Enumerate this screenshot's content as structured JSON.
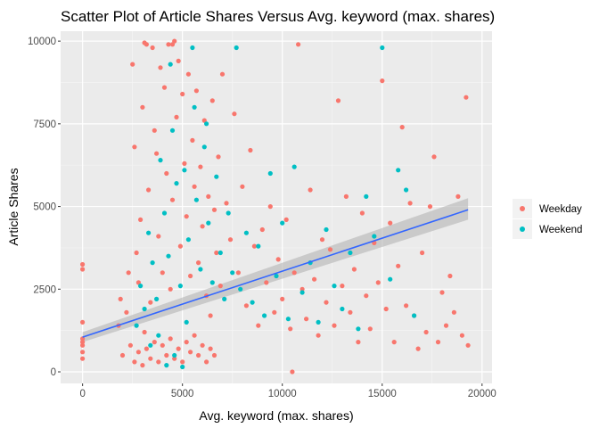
{
  "chart_data": {
    "type": "scatter",
    "title": "Scatter Plot of Article Shares Versus Avg. keyword (max. shares)",
    "xlabel": "Avg. keyword (max. shares)",
    "ylabel": "Article Shares",
    "xlim": [
      -1100,
      20500
    ],
    "ylim": [
      -350,
      10300
    ],
    "x_ticks": [
      0,
      5000,
      10000,
      15000,
      20000
    ],
    "x_tick_labels": [
      "0",
      "5000",
      "10000",
      "15000",
      "20000"
    ],
    "y_ticks": [
      0,
      2500,
      5000,
      7500,
      10000
    ],
    "y_tick_labels": [
      "0",
      "2500",
      "5000",
      "7500",
      "10000"
    ],
    "grid": true,
    "background": "#ebebeb",
    "legend": {
      "position": "right",
      "title": ""
    },
    "series": [
      {
        "name": "Weekday",
        "color": "#f8766d",
        "points": [
          [
            0,
            1500
          ],
          [
            0,
            3100
          ],
          [
            0,
            3250
          ],
          [
            0,
            1000
          ],
          [
            0,
            800
          ],
          [
            0,
            600
          ],
          [
            0,
            400
          ],
          [
            0,
            900
          ],
          [
            1800,
            1400
          ],
          [
            1900,
            2200
          ],
          [
            2000,
            500
          ],
          [
            2200,
            1800
          ],
          [
            2300,
            3000
          ],
          [
            2400,
            800
          ],
          [
            2500,
            9300
          ],
          [
            2600,
            6800
          ],
          [
            2700,
            3600
          ],
          [
            2800,
            2700
          ],
          [
            2900,
            4600
          ],
          [
            3000,
            8000
          ],
          [
            3100,
            1200
          ],
          [
            3200,
            9900
          ],
          [
            3300,
            5500
          ],
          [
            3400,
            2100
          ],
          [
            3500,
            9800
          ],
          [
            3600,
            7300
          ],
          [
            3700,
            6600
          ],
          [
            3800,
            4100
          ],
          [
            3900,
            9200
          ],
          [
            4000,
            3000
          ],
          [
            4100,
            8600
          ],
          [
            4200,
            6000
          ],
          [
            4300,
            9900
          ],
          [
            4400,
            2500
          ],
          [
            4500,
            5200
          ],
          [
            4600,
            10000
          ],
          [
            4700,
            7700
          ],
          [
            4800,
            9400
          ],
          [
            4900,
            3800
          ],
          [
            5000,
            8400
          ],
          [
            5100,
            6300
          ],
          [
            5200,
            4700
          ],
          [
            5300,
            9000
          ],
          [
            5400,
            2900
          ],
          [
            5500,
            7000
          ],
          [
            5600,
            5600
          ],
          [
            5700,
            8500
          ],
          [
            5800,
            3300
          ],
          [
            5900,
            6200
          ],
          [
            6000,
            4400
          ],
          [
            6100,
            7600
          ],
          [
            6200,
            2300
          ],
          [
            6300,
            5300
          ],
          [
            6400,
            1700
          ],
          [
            6500,
            8200
          ],
          [
            6600,
            4900
          ],
          [
            6700,
            3600
          ],
          [
            6800,
            6500
          ],
          [
            6900,
            2600
          ],
          [
            7000,
            9000
          ],
          [
            7200,
            5100
          ],
          [
            7400,
            4000
          ],
          [
            7600,
            7800
          ],
          [
            7800,
            3000
          ],
          [
            8000,
            5600
          ],
          [
            8200,
            2000
          ],
          [
            8400,
            6700
          ],
          [
            8600,
            3800
          ],
          [
            8800,
            1400
          ],
          [
            9000,
            4300
          ],
          [
            9200,
            2700
          ],
          [
            9400,
            5000
          ],
          [
            9600,
            1800
          ],
          [
            9800,
            3400
          ],
          [
            10000,
            2200
          ],
          [
            10200,
            4600
          ],
          [
            10400,
            1300
          ],
          [
            10600,
            3000
          ],
          [
            10800,
            9900
          ],
          [
            11000,
            2500
          ],
          [
            11200,
            1600
          ],
          [
            11400,
            5500
          ],
          [
            11600,
            2800
          ],
          [
            11800,
            1100
          ],
          [
            12000,
            4000
          ],
          [
            12200,
            2100
          ],
          [
            12400,
            3700
          ],
          [
            12600,
            1400
          ],
          [
            12800,
            8200
          ],
          [
            13000,
            2600
          ],
          [
            13200,
            5300
          ],
          [
            13400,
            1800
          ],
          [
            13600,
            3100
          ],
          [
            13800,
            900
          ],
          [
            14000,
            4800
          ],
          [
            14200,
            2300
          ],
          [
            14400,
            1300
          ],
          [
            14600,
            3900
          ],
          [
            14800,
            2700
          ],
          [
            15000,
            8800
          ],
          [
            15200,
            1900
          ],
          [
            15400,
            4500
          ],
          [
            15600,
            900
          ],
          [
            15800,
            3200
          ],
          [
            16000,
            7400
          ],
          [
            16200,
            2000
          ],
          [
            16400,
            5100
          ],
          [
            16600,
            1700
          ],
          [
            16800,
            700
          ],
          [
            17000,
            3600
          ],
          [
            17200,
            1200
          ],
          [
            17400,
            5000
          ],
          [
            17600,
            6500
          ],
          [
            17800,
            900
          ],
          [
            18000,
            2400
          ],
          [
            18200,
            1400
          ],
          [
            18400,
            2900
          ],
          [
            18600,
            1800
          ],
          [
            18800,
            5300
          ],
          [
            19000,
            1100
          ],
          [
            19200,
            8300
          ],
          [
            19300,
            800
          ],
          [
            2600,
            300
          ],
          [
            2800,
            600
          ],
          [
            3000,
            200
          ],
          [
            3200,
            700
          ],
          [
            3400,
            400
          ],
          [
            3600,
            900
          ],
          [
            3800,
            300
          ],
          [
            4000,
            800
          ],
          [
            4200,
            500
          ],
          [
            4400,
            1000
          ],
          [
            4600,
            400
          ],
          [
            4800,
            700
          ],
          [
            5000,
            300
          ],
          [
            5200,
            900
          ],
          [
            5400,
            600
          ],
          [
            5600,
            1100
          ],
          [
            5800,
            500
          ],
          [
            6000,
            800
          ],
          [
            6200,
            300
          ],
          [
            6400,
            700
          ],
          [
            6600,
            500
          ],
          [
            10500,
            0
          ],
          [
            3100,
            9950
          ],
          [
            4500,
            9900
          ]
        ]
      },
      {
        "name": "Weekend",
        "color": "#00bfc4",
        "points": [
          [
            2700,
            1400
          ],
          [
            2900,
            2600
          ],
          [
            3100,
            1900
          ],
          [
            3300,
            4200
          ],
          [
            3500,
            3300
          ],
          [
            3700,
            2200
          ],
          [
            3900,
            6400
          ],
          [
            4100,
            4800
          ],
          [
            4300,
            3500
          ],
          [
            4500,
            7300
          ],
          [
            4700,
            5700
          ],
          [
            4900,
            2600
          ],
          [
            5100,
            6100
          ],
          [
            5300,
            4000
          ],
          [
            5500,
            9800
          ],
          [
            5700,
            5200
          ],
          [
            5900,
            3100
          ],
          [
            6100,
            6800
          ],
          [
            6300,
            4500
          ],
          [
            6500,
            2700
          ],
          [
            6700,
            5900
          ],
          [
            6900,
            3600
          ],
          [
            7100,
            2200
          ],
          [
            7300,
            4800
          ],
          [
            7500,
            3000
          ],
          [
            7700,
            9800
          ],
          [
            7900,
            2500
          ],
          [
            8200,
            4200
          ],
          [
            8500,
            2100
          ],
          [
            8800,
            3800
          ],
          [
            9100,
            1700
          ],
          [
            9400,
            6000
          ],
          [
            9700,
            2900
          ],
          [
            10000,
            4500
          ],
          [
            10300,
            1600
          ],
          [
            10600,
            6200
          ],
          [
            11000,
            2400
          ],
          [
            11400,
            3300
          ],
          [
            11800,
            1500
          ],
          [
            12200,
            4300
          ],
          [
            12600,
            2600
          ],
          [
            13000,
            1900
          ],
          [
            13400,
            3600
          ],
          [
            13800,
            1300
          ],
          [
            14200,
            5300
          ],
          [
            14600,
            4100
          ],
          [
            15000,
            9800
          ],
          [
            15400,
            2800
          ],
          [
            15800,
            6100
          ],
          [
            16200,
            5500
          ],
          [
            16600,
            1700
          ],
          [
            4200,
            200
          ],
          [
            4600,
            500
          ],
          [
            5000,
            150
          ],
          [
            3400,
            800
          ],
          [
            3800,
            1100
          ],
          [
            4400,
            9300
          ],
          [
            5200,
            1500
          ],
          [
            5600,
            8000
          ],
          [
            6200,
            7500
          ]
        ]
      }
    ],
    "trendline": {
      "type": "lm",
      "color": "#3366ff",
      "band_color": "#b4b4b4",
      "points": [
        [
          0,
          1050
        ],
        [
          19300,
          4900
        ]
      ],
      "band_low": [
        [
          0,
          900
        ],
        [
          19300,
          4600
        ]
      ],
      "band_high": [
        [
          0,
          1200
        ],
        [
          19300,
          5250
        ]
      ]
    }
  }
}
